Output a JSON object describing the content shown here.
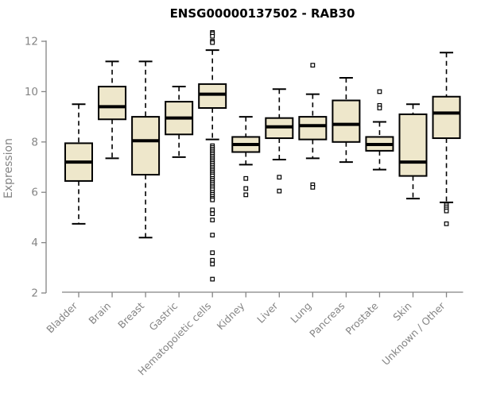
{
  "chart_data": {
    "type": "boxplot",
    "title": "ENSG00000137502 - RAB30",
    "xlabel": "",
    "ylabel": "Expression",
    "ylim": [
      2,
      12.5
    ],
    "yticks": [
      2,
      4,
      6,
      8,
      10,
      12
    ],
    "grid": false,
    "legend": false,
    "categories": [
      "Bladder",
      "Brain",
      "Breast",
      "Gastric",
      "Hematopoietic cells",
      "Kidney",
      "Liver",
      "Lung",
      "Pancreas",
      "Prostate",
      "Skin",
      "Unknown / Other"
    ],
    "series": [
      {
        "name": "Bladder",
        "whisker_low": 4.75,
        "q1": 6.45,
        "median": 7.2,
        "q3": 7.95,
        "whisker_high": 9.5,
        "outliers": []
      },
      {
        "name": "Brain",
        "whisker_low": 7.35,
        "q1": 8.9,
        "median": 9.4,
        "q3": 10.2,
        "whisker_high": 11.2,
        "outliers": []
      },
      {
        "name": "Breast",
        "whisker_low": 4.2,
        "q1": 6.7,
        "median": 8.05,
        "q3": 9.0,
        "whisker_high": 11.2,
        "outliers": []
      },
      {
        "name": "Gastric",
        "whisker_low": 7.4,
        "q1": 8.3,
        "median": 8.95,
        "q3": 9.6,
        "whisker_high": 10.2,
        "outliers": []
      },
      {
        "name": "Hematopoietic cells",
        "whisker_low": 8.1,
        "q1": 9.35,
        "median": 9.9,
        "q3": 10.3,
        "whisker_high": 11.65,
        "outliers": [
          12.35,
          12.3,
          12.2,
          12.0,
          11.95,
          7.85,
          7.78,
          7.71,
          7.64,
          7.57,
          7.5,
          7.43,
          7.36,
          7.29,
          7.22,
          7.15,
          7.08,
          7.0,
          6.93,
          6.86,
          6.79,
          6.72,
          6.65,
          6.55,
          6.48,
          6.4,
          6.33,
          6.25,
          6.18,
          6.1,
          6.0,
          5.92,
          5.84,
          5.76,
          5.7,
          5.3,
          5.15,
          4.9,
          4.3,
          3.6,
          3.3,
          3.15,
          2.55
        ]
      },
      {
        "name": "Kidney",
        "whisker_low": 7.1,
        "q1": 7.6,
        "median": 7.9,
        "q3": 8.2,
        "whisker_high": 9.0,
        "outliers": [
          6.55,
          6.15,
          5.9
        ]
      },
      {
        "name": "Liver",
        "whisker_low": 7.3,
        "q1": 8.15,
        "median": 8.6,
        "q3": 8.95,
        "whisker_high": 10.1,
        "outliers": [
          6.6,
          6.05
        ]
      },
      {
        "name": "Lung",
        "whisker_low": 7.35,
        "q1": 8.1,
        "median": 8.65,
        "q3": 9.0,
        "whisker_high": 9.9,
        "outliers": [
          11.05,
          6.3,
          6.2
        ]
      },
      {
        "name": "Pancreas",
        "whisker_low": 7.2,
        "q1": 8.0,
        "median": 8.7,
        "q3": 9.65,
        "whisker_high": 10.55,
        "outliers": []
      },
      {
        "name": "Prostate",
        "whisker_low": 6.9,
        "q1": 7.65,
        "median": 7.9,
        "q3": 8.2,
        "whisker_high": 8.8,
        "outliers": [
          10.0,
          9.45,
          9.35
        ]
      },
      {
        "name": "Skin",
        "whisker_low": 5.75,
        "q1": 6.65,
        "median": 7.2,
        "q3": 9.1,
        "whisker_high": 9.5,
        "outliers": []
      },
      {
        "name": "Unknown / Other",
        "whisker_low": 5.6,
        "q1": 8.15,
        "median": 9.15,
        "q3": 9.8,
        "whisker_high": 11.55,
        "outliers": [
          5.5,
          5.42,
          5.34,
          5.26,
          4.75
        ]
      }
    ],
    "colors": {
      "box_fill": "#EEE7CB",
      "box_stroke": "#000000",
      "median": "#000000",
      "outlier_fill": "#FFFFFF",
      "axis": "#848484",
      "tick_label": "#848484",
      "title": "#000000",
      "background": "#FFFFFF"
    }
  }
}
